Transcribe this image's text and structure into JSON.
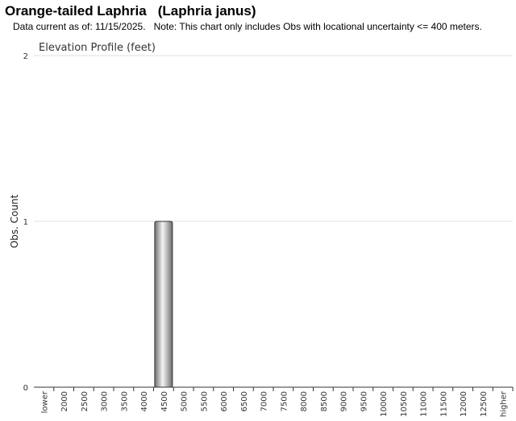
{
  "header": {
    "common_name": "Orange-tailed Laphria",
    "scientific_name": "(Laphria janus)",
    "data_current": "Data current as of: 11/15/2025.",
    "note": "Note: This chart only includes Obs with locational uncertainty <= 400 meters."
  },
  "chart_data": {
    "type": "bar",
    "title": "Elevation Profile (feet)",
    "xlabel": "",
    "ylabel": "Obs. Count",
    "categories": [
      "lower",
      "2000",
      "2500",
      "3000",
      "3500",
      "4000",
      "4500",
      "5000",
      "5500",
      "6000",
      "6500",
      "7000",
      "7500",
      "8000",
      "8500",
      "9000",
      "9500",
      "10000",
      "10500",
      "11000",
      "11500",
      "12000",
      "12500",
      "higher"
    ],
    "values": [
      0,
      0,
      0,
      0,
      0,
      0,
      1,
      0,
      0,
      0,
      0,
      0,
      0,
      0,
      0,
      0,
      0,
      0,
      0,
      0,
      0,
      0,
      0,
      0
    ],
    "ylim": [
      0,
      2
    ],
    "yticks": [
      "0",
      "1",
      "2"
    ],
    "grid": true,
    "colors": {
      "bar_dark": "#6e6e6e",
      "bar_light": "#f4f4f4",
      "bar_stroke": "#333333",
      "grid": "#e0e0e0",
      "axis": "#333333"
    }
  }
}
